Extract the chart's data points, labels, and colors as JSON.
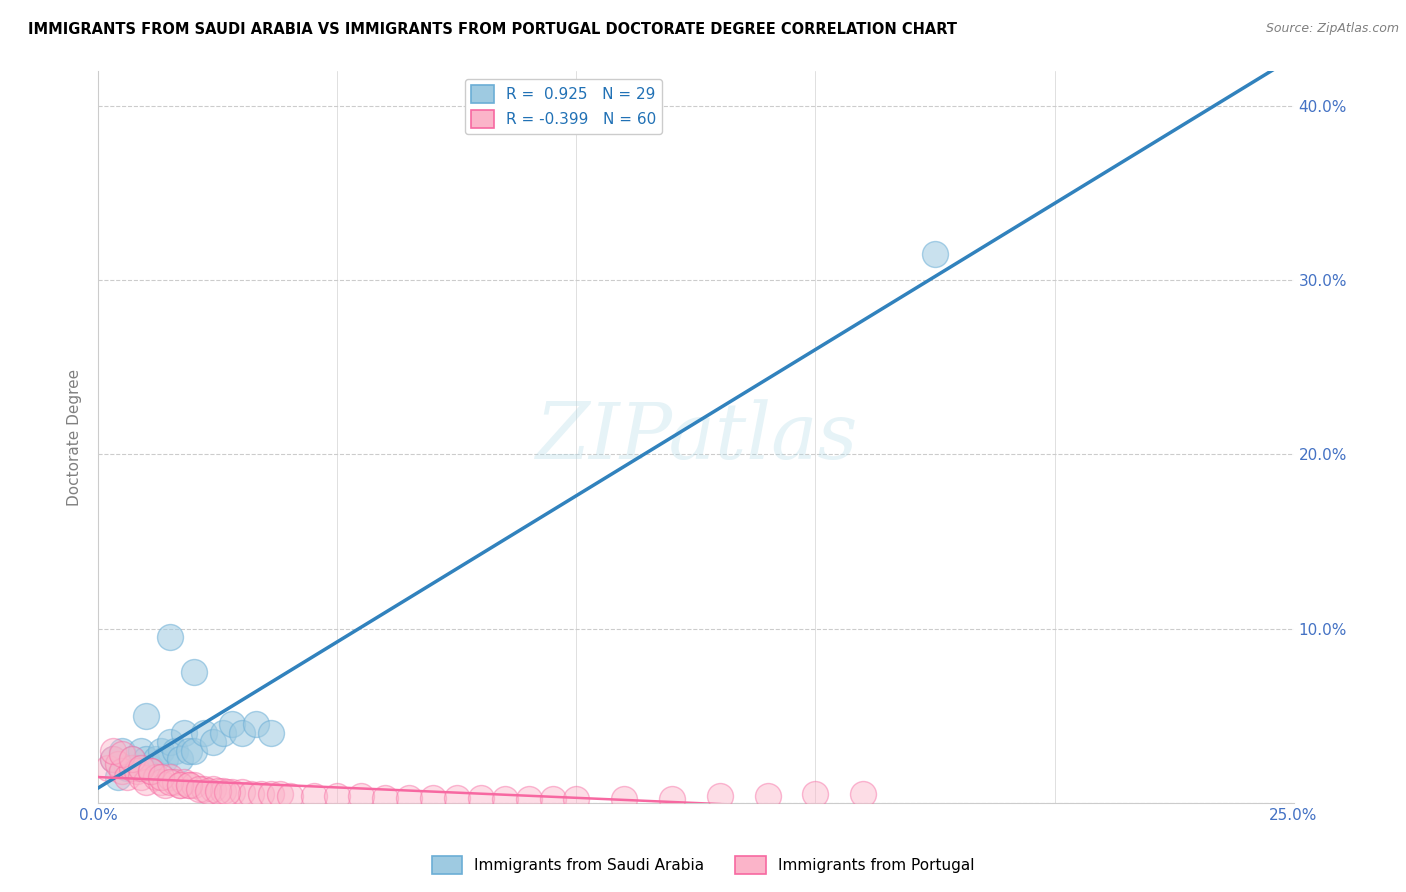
{
  "title": "IMMIGRANTS FROM SAUDI ARABIA VS IMMIGRANTS FROM PORTUGAL DOCTORATE DEGREE CORRELATION CHART",
  "source": "Source: ZipAtlas.com",
  "ylabel": "Doctorate Degree",
  "xlim": [
    0.0,
    0.25
  ],
  "ylim": [
    0.0,
    0.42
  ],
  "xticks": [
    0.0,
    0.05,
    0.1,
    0.15,
    0.2,
    0.25
  ],
  "yticks": [
    0.0,
    0.1,
    0.2,
    0.3,
    0.4
  ],
  "xtick_labels_bottom": [
    "0.0%",
    "",
    "",
    "",
    "",
    "25.0%"
  ],
  "ytick_labels_right": [
    "",
    "10.0%",
    "20.0%",
    "30.0%",
    "40.0%"
  ],
  "blue_R": 0.925,
  "blue_N": 29,
  "pink_R": -0.399,
  "pink_N": 60,
  "watermark": "ZIPatlas",
  "blue_color": "#9ecae1",
  "pink_color": "#fbb4c9",
  "blue_edge_color": "#6baed6",
  "pink_edge_color": "#f768a1",
  "blue_line_color": "#3182bd",
  "pink_line_color": "#f768a1",
  "title_fontsize": 10.5,
  "source_fontsize": 9,
  "tick_fontsize": 11,
  "ylabel_fontsize": 11,
  "blue_scatter_x": [
    0.003,
    0.004,
    0.005,
    0.006,
    0.007,
    0.008,
    0.009,
    0.01,
    0.011,
    0.012,
    0.013,
    0.014,
    0.015,
    0.016,
    0.017,
    0.018,
    0.019,
    0.02,
    0.022,
    0.024,
    0.026,
    0.028,
    0.03,
    0.033,
    0.036,
    0.015,
    0.02,
    0.175,
    0.01
  ],
  "blue_scatter_y": [
    0.025,
    0.015,
    0.03,
    0.02,
    0.025,
    0.02,
    0.03,
    0.025,
    0.02,
    0.025,
    0.03,
    0.025,
    0.035,
    0.03,
    0.025,
    0.04,
    0.03,
    0.03,
    0.04,
    0.035,
    0.04,
    0.045,
    0.04,
    0.045,
    0.04,
    0.095,
    0.075,
    0.315,
    0.05
  ],
  "pink_scatter_x": [
    0.002,
    0.003,
    0.004,
    0.005,
    0.006,
    0.007,
    0.008,
    0.009,
    0.01,
    0.011,
    0.012,
    0.013,
    0.014,
    0.015,
    0.016,
    0.017,
    0.018,
    0.019,
    0.02,
    0.022,
    0.024,
    0.026,
    0.028,
    0.03,
    0.032,
    0.034,
    0.036,
    0.038,
    0.04,
    0.045,
    0.05,
    0.055,
    0.06,
    0.065,
    0.07,
    0.075,
    0.08,
    0.085,
    0.09,
    0.095,
    0.1,
    0.11,
    0.12,
    0.13,
    0.14,
    0.15,
    0.16,
    0.003,
    0.005,
    0.007,
    0.009,
    0.011,
    0.013,
    0.015,
    0.017,
    0.019,
    0.021,
    0.023,
    0.025,
    0.027
  ],
  "pink_scatter_y": [
    0.02,
    0.025,
    0.022,
    0.018,
    0.015,
    0.02,
    0.018,
    0.015,
    0.012,
    0.018,
    0.015,
    0.012,
    0.01,
    0.015,
    0.012,
    0.01,
    0.012,
    0.01,
    0.01,
    0.008,
    0.008,
    0.007,
    0.006,
    0.006,
    0.005,
    0.005,
    0.005,
    0.005,
    0.004,
    0.004,
    0.004,
    0.004,
    0.003,
    0.003,
    0.003,
    0.003,
    0.003,
    0.002,
    0.002,
    0.002,
    0.002,
    0.002,
    0.002,
    0.004,
    0.004,
    0.005,
    0.005,
    0.03,
    0.028,
    0.025,
    0.02,
    0.018,
    0.015,
    0.012,
    0.01,
    0.01,
    0.008,
    0.007,
    0.007,
    0.006
  ]
}
